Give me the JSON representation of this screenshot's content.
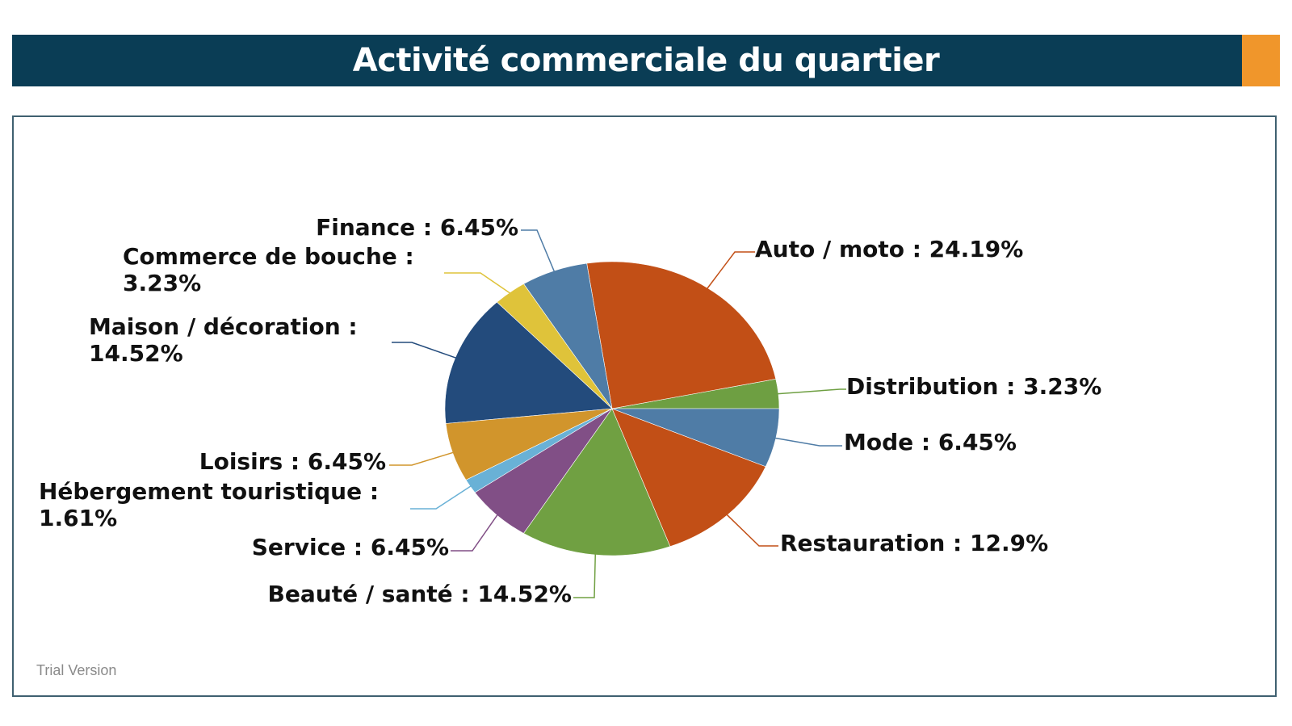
{
  "header": {
    "title": "Activité commerciale du quartier"
  },
  "watermark": "Trial Version",
  "colors": {
    "banner": "#0a3d55",
    "accent": "#f0962b",
    "frame": "#3f6070"
  },
  "chart_data": {
    "type": "pie",
    "title": "",
    "start_angle_deg": 0,
    "direction": "counterclockwise",
    "slices": [
      {
        "label": "Distribution : 3.23%",
        "value": 3.23,
        "color": "#6e9f42"
      },
      {
        "label": "Auto / moto : 24.19%",
        "value": 24.19,
        "color": "#c24f16"
      },
      {
        "label": "Finance : 6.45%",
        "value": 6.45,
        "color": "#4f7ca6"
      },
      {
        "label": [
          "Commerce de bouche :",
          "3.23%"
        ],
        "value": 3.23,
        "color": "#dfc33a"
      },
      {
        "label": [
          "Maison / décoration :",
          "14.52%"
        ],
        "value": 14.52,
        "color": "#234b7c"
      },
      {
        "label": "Loisirs : 6.45%",
        "value": 6.45,
        "color": "#d1952c"
      },
      {
        "label": [
          "Hébergement touristique :",
          "1.61%"
        ],
        "value": 1.61,
        "color": "#69b1d6"
      },
      {
        "label": "Service : 6.45%",
        "value": 6.45,
        "color": "#814f86"
      },
      {
        "label": "Beauté / santé : 14.52%",
        "value": 14.52,
        "color": "#70a042"
      },
      {
        "label": "Restauration : 12.9%",
        "value": 12.9,
        "color": "#c24f16"
      },
      {
        "label": "Mode : 6.45%",
        "value": 6.45,
        "color": "#4f7ca6"
      }
    ]
  }
}
